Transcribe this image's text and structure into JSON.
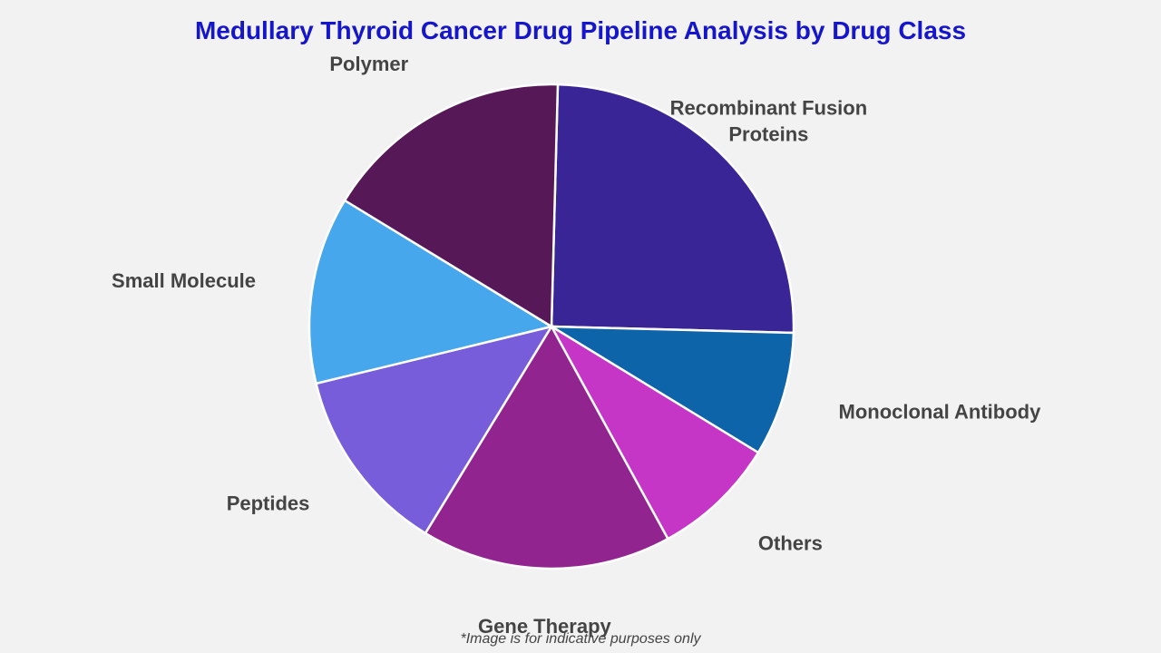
{
  "chart_data": {
    "type": "pie",
    "title": "Medullary Thyroid Cancer Drug Pipeline Analysis by Drug Class",
    "slices": [
      {
        "label": [
          "Recombinant Fusion",
          "Proteins"
        ],
        "value": 25.0,
        "color": "#3a2597"
      },
      {
        "label": [
          "Monoclonal Antibody"
        ],
        "value": 8.3,
        "color": "#0e64a8"
      },
      {
        "label": [
          "Others"
        ],
        "value": 8.3,
        "color": "#c535c6"
      },
      {
        "label": [
          "Gene Therapy"
        ],
        "value": 16.7,
        "color": "#91248e"
      },
      {
        "label": [
          "Peptides"
        ],
        "value": 12.5,
        "color": "#775dda"
      },
      {
        "label": [
          "Small Molecule"
        ],
        "value": 12.5,
        "color": "#46a7ec"
      },
      {
        "label": [
          "Polymer"
        ],
        "value": 16.7,
        "color": "#561857"
      }
    ]
  },
  "footnote": "*Image is for indicative purposes only"
}
